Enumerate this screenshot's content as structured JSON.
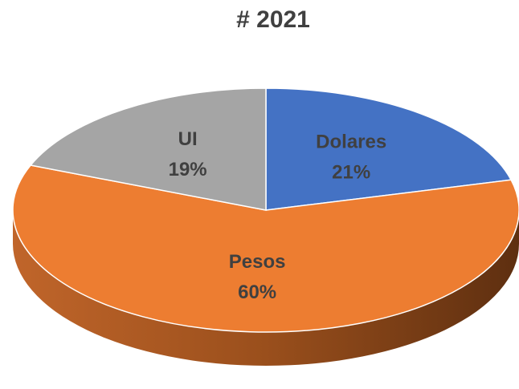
{
  "chart_data": {
    "type": "pie",
    "title": "# 2021",
    "categories": [
      "Dolares",
      "Pesos",
      "UI"
    ],
    "values": [
      21,
      60,
      19
    ],
    "value_labels": [
      "21%",
      "60%",
      "19%"
    ],
    "colors": [
      "#4472c4",
      "#ed7d31",
      "#a5a5a5"
    ]
  }
}
